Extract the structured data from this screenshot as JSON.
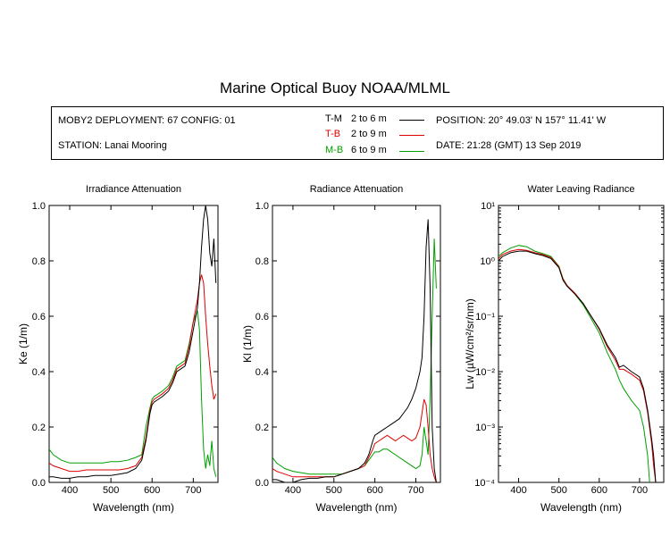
{
  "title": "Marine Optical Buoy NOAA/MLML",
  "info": {
    "deployment": "MOBY2 DEPLOYMENT: 67 CONFIG: 01",
    "station": "STATION: Lanai Mooring",
    "position": "POSITION: 20° 49.03' N   157° 11.41' W",
    "date": "DATE: 21:28 (GMT) 13 Sep 2019"
  },
  "legend": [
    {
      "code": "T-M",
      "range": "2 to 6  m",
      "color": "#000000"
    },
    {
      "code": "T-B",
      "range": "2 to 9  m",
      "color": "#dd0000"
    },
    {
      "code": "M-B",
      "range": "6 to 9  m",
      "color": "#00a000"
    }
  ],
  "chart_data": [
    {
      "type": "line",
      "title": "Irradiance Attenuation",
      "xlabel": "Wavelength (nm)",
      "ylabel": "Ke  (1/m)",
      "xlim": [
        350,
        760
      ],
      "ylim": [
        0,
        1.0
      ],
      "xticks": [
        400,
        500,
        600,
        700
      ],
      "yticks": [
        0.0,
        0.2,
        0.4,
        0.6,
        0.8,
        1.0
      ],
      "ytick_labels": [
        "0.0",
        "0.2",
        "0.4",
        "0.6",
        "0.8",
        "1.0"
      ],
      "series": [
        {
          "code": "T-M",
          "color": "#000000",
          "x": [
            350,
            360,
            380,
            400,
            420,
            440,
            460,
            480,
            500,
            520,
            540,
            560,
            575,
            585,
            595,
            600,
            605,
            615,
            625,
            640,
            650,
            660,
            670,
            680,
            690,
            700,
            710,
            715,
            720,
            725,
            730,
            735,
            740,
            745,
            750,
            755
          ],
          "y": [
            0.02,
            0.02,
            0.015,
            0.015,
            0.02,
            0.02,
            0.025,
            0.025,
            0.025,
            0.03,
            0.035,
            0.05,
            0.08,
            0.15,
            0.25,
            0.28,
            0.29,
            0.3,
            0.31,
            0.33,
            0.36,
            0.4,
            0.41,
            0.42,
            0.47,
            0.55,
            0.63,
            0.72,
            0.85,
            0.95,
            1.0,
            0.95,
            0.83,
            0.78,
            0.88,
            0.72
          ]
        },
        {
          "code": "T-B",
          "color": "#dd0000",
          "x": [
            350,
            360,
            380,
            400,
            420,
            440,
            460,
            480,
            500,
            520,
            540,
            560,
            575,
            585,
            595,
            600,
            605,
            615,
            625,
            640,
            650,
            660,
            670,
            680,
            690,
            700,
            710,
            715,
            720,
            725,
            730,
            735,
            740,
            745,
            750,
            755
          ],
          "y": [
            0.07,
            0.06,
            0.05,
            0.04,
            0.04,
            0.045,
            0.045,
            0.045,
            0.045,
            0.045,
            0.05,
            0.06,
            0.09,
            0.16,
            0.26,
            0.29,
            0.3,
            0.31,
            0.32,
            0.34,
            0.37,
            0.41,
            0.42,
            0.43,
            0.49,
            0.58,
            0.66,
            0.72,
            0.75,
            0.72,
            0.6,
            0.5,
            0.42,
            0.35,
            0.3,
            0.32
          ]
        },
        {
          "code": "M-B",
          "color": "#00a000",
          "x": [
            350,
            360,
            380,
            400,
            420,
            440,
            460,
            480,
            500,
            520,
            540,
            560,
            575,
            585,
            595,
            600,
            605,
            615,
            625,
            640,
            650,
            660,
            670,
            680,
            690,
            700,
            710,
            715,
            720,
            725,
            730,
            735,
            740,
            745,
            750,
            755
          ],
          "y": [
            0.12,
            0.1,
            0.08,
            0.07,
            0.07,
            0.07,
            0.07,
            0.07,
            0.075,
            0.075,
            0.08,
            0.09,
            0.1,
            0.2,
            0.27,
            0.3,
            0.31,
            0.32,
            0.33,
            0.35,
            0.38,
            0.42,
            0.43,
            0.44,
            0.5,
            0.58,
            0.62,
            0.55,
            0.3,
            0.12,
            0.05,
            0.1,
            0.06,
            0.15,
            0.05,
            0.02
          ]
        }
      ]
    },
    {
      "type": "line",
      "title": "Radiance Attenuation",
      "xlabel": "Wavelength (nm)",
      "ylabel": "Kl  (1/m)",
      "xlim": [
        350,
        760
      ],
      "ylim": [
        0,
        1.0
      ],
      "xticks": [
        400,
        500,
        600,
        700
      ],
      "yticks": [
        0.0,
        0.2,
        0.4,
        0.6,
        0.8,
        1.0
      ],
      "ytick_labels": [
        "0.0",
        "0.2",
        "0.4",
        "0.6",
        "0.8",
        "1.0"
      ],
      "series": [
        {
          "code": "T-M",
          "color": "#000000",
          "x": [
            350,
            360,
            380,
            400,
            420,
            440,
            460,
            480,
            500,
            520,
            540,
            560,
            575,
            585,
            595,
            600,
            610,
            620,
            630,
            640,
            650,
            660,
            670,
            680,
            690,
            700,
            710,
            715,
            720,
            725,
            730,
            735,
            740,
            745,
            750
          ],
          "y": [
            0.01,
            0.01,
            0.0,
            0.0,
            0.01,
            0.015,
            0.015,
            0.02,
            0.02,
            0.03,
            0.04,
            0.05,
            0.07,
            0.1,
            0.15,
            0.17,
            0.18,
            0.19,
            0.2,
            0.21,
            0.22,
            0.23,
            0.25,
            0.27,
            0.3,
            0.34,
            0.4,
            0.45,
            0.6,
            0.85,
            0.95,
            0.7,
            0.2,
            0.05,
            0.0
          ]
        },
        {
          "code": "T-B",
          "color": "#dd0000",
          "x": [
            350,
            360,
            380,
            400,
            420,
            440,
            460,
            480,
            500,
            520,
            540,
            560,
            575,
            585,
            595,
            600,
            610,
            620,
            630,
            640,
            650,
            660,
            670,
            680,
            690,
            700,
            710,
            715,
            720,
            725,
            730,
            735,
            740,
            745,
            750
          ],
          "y": [
            0.05,
            0.04,
            0.03,
            0.02,
            0.02,
            0.02,
            0.02,
            0.02,
            0.02,
            0.03,
            0.04,
            0.05,
            0.06,
            0.09,
            0.12,
            0.14,
            0.15,
            0.16,
            0.17,
            0.16,
            0.15,
            0.16,
            0.17,
            0.16,
            0.15,
            0.16,
            0.2,
            0.25,
            0.3,
            0.28,
            0.2,
            0.1,
            0.05,
            0.02,
            0.0
          ]
        },
        {
          "code": "M-B",
          "color": "#00a000",
          "x": [
            350,
            360,
            380,
            400,
            420,
            440,
            460,
            480,
            500,
            520,
            540,
            560,
            575,
            585,
            595,
            600,
            610,
            620,
            630,
            640,
            650,
            660,
            670,
            680,
            690,
            700,
            710,
            715,
            720,
            725,
            730,
            735,
            740,
            745,
            750
          ],
          "y": [
            0.09,
            0.07,
            0.05,
            0.04,
            0.035,
            0.03,
            0.03,
            0.03,
            0.03,
            0.03,
            0.04,
            0.05,
            0.06,
            0.08,
            0.1,
            0.11,
            0.11,
            0.12,
            0.12,
            0.11,
            0.1,
            0.09,
            0.08,
            0.07,
            0.06,
            0.05,
            0.06,
            0.1,
            0.2,
            0.15,
            0.1,
            0.3,
            0.6,
            0.88,
            0.7
          ]
        }
      ]
    },
    {
      "type": "line",
      "title": "Water Leaving Radiance",
      "xlabel": "Wavelength (nm)",
      "ylabel": "Lw  (µW/cm²/sr/nm)",
      "yscale": "log",
      "xlim": [
        350,
        760
      ],
      "ylim": [
        0.0001,
        10
      ],
      "xticks": [
        400,
        500,
        600,
        700
      ],
      "yticks": [
        0.0001,
        0.001,
        0.01,
        0.1,
        1,
        10
      ],
      "ytick_labels": [
        "10⁻⁴",
        "10⁻³",
        "10⁻²",
        "10⁻¹",
        "10⁰",
        "10¹"
      ],
      "series": [
        {
          "code": "T-M",
          "color": "#000000",
          "x": [
            350,
            360,
            380,
            400,
            420,
            440,
            460,
            480,
            500,
            510,
            520,
            540,
            560,
            580,
            600,
            620,
            640,
            650,
            660,
            680,
            700,
            710,
            720,
            730,
            735,
            740
          ],
          "y": [
            1.0,
            1.2,
            1.4,
            1.5,
            1.5,
            1.35,
            1.25,
            1.1,
            0.75,
            0.45,
            0.35,
            0.25,
            0.17,
            0.1,
            0.06,
            0.03,
            0.018,
            0.012,
            0.013,
            0.01,
            0.008,
            0.005,
            0.002,
            0.0006,
            0.0003,
            0.0001
          ]
        },
        {
          "code": "T-B",
          "color": "#dd0000",
          "x": [
            350,
            360,
            380,
            400,
            420,
            440,
            460,
            480,
            500,
            510,
            520,
            540,
            560,
            580,
            600,
            620,
            640,
            650,
            660,
            680,
            700,
            710,
            720,
            730,
            735,
            740
          ],
          "y": [
            1.1,
            1.3,
            1.5,
            1.6,
            1.55,
            1.4,
            1.3,
            1.15,
            0.78,
            0.47,
            0.36,
            0.26,
            0.17,
            0.1,
            0.058,
            0.028,
            0.016,
            0.011,
            0.011,
            0.009,
            0.007,
            0.0045,
            0.0018,
            0.0005,
            0.0002,
            0.0001
          ]
        },
        {
          "code": "M-B",
          "color": "#00a000",
          "x": [
            350,
            360,
            380,
            400,
            420,
            440,
            460,
            480,
            500,
            510,
            520,
            540,
            560,
            580,
            600,
            620,
            640,
            650,
            660,
            680,
            700,
            710,
            720,
            725
          ],
          "y": [
            1.2,
            1.4,
            1.7,
            1.9,
            1.8,
            1.5,
            1.35,
            1.2,
            0.8,
            0.48,
            0.36,
            0.25,
            0.16,
            0.09,
            0.05,
            0.022,
            0.011,
            0.007,
            0.005,
            0.003,
            0.002,
            0.001,
            0.0003,
            0.0001
          ]
        }
      ]
    }
  ]
}
